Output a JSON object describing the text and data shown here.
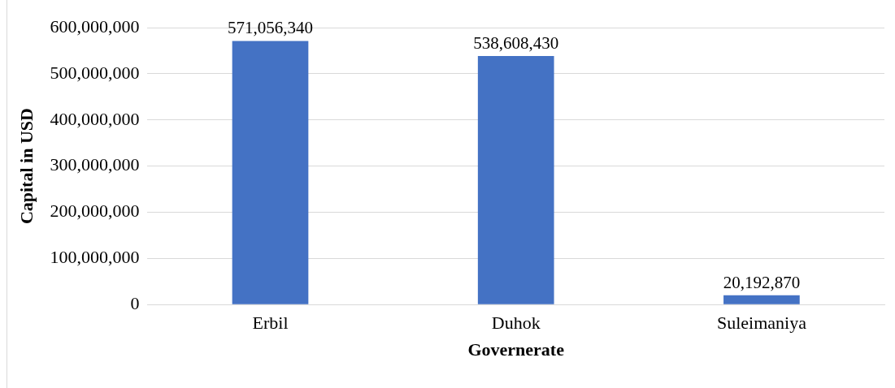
{
  "chart_data": {
    "type": "bar",
    "xlabel": "Governerate",
    "ylabel": "Capital in USD",
    "categories": [
      "Erbil",
      "Duhok",
      "Suleimaniya"
    ],
    "values": [
      571056340,
      538608430,
      20192870
    ],
    "color": "#4472c4",
    "ylim": [
      0,
      600000000
    ],
    "yticks": [
      {
        "value": 0,
        "label": "0"
      },
      {
        "value": 100000000,
        "label": "100,000,000"
      },
      {
        "value": 200000000,
        "label": "200,000,000"
      },
      {
        "value": 300000000,
        "label": "300,000,000"
      },
      {
        "value": 400000000,
        "label": "400,000,000"
      },
      {
        "value": 500000000,
        "label": "500,000,000"
      },
      {
        "value": 600000000,
        "label": "600,000,000"
      }
    ],
    "value_labels": [
      "571,056,340",
      "538,608,430",
      "20,192,870"
    ],
    "grid": "y",
    "legend": false
  }
}
